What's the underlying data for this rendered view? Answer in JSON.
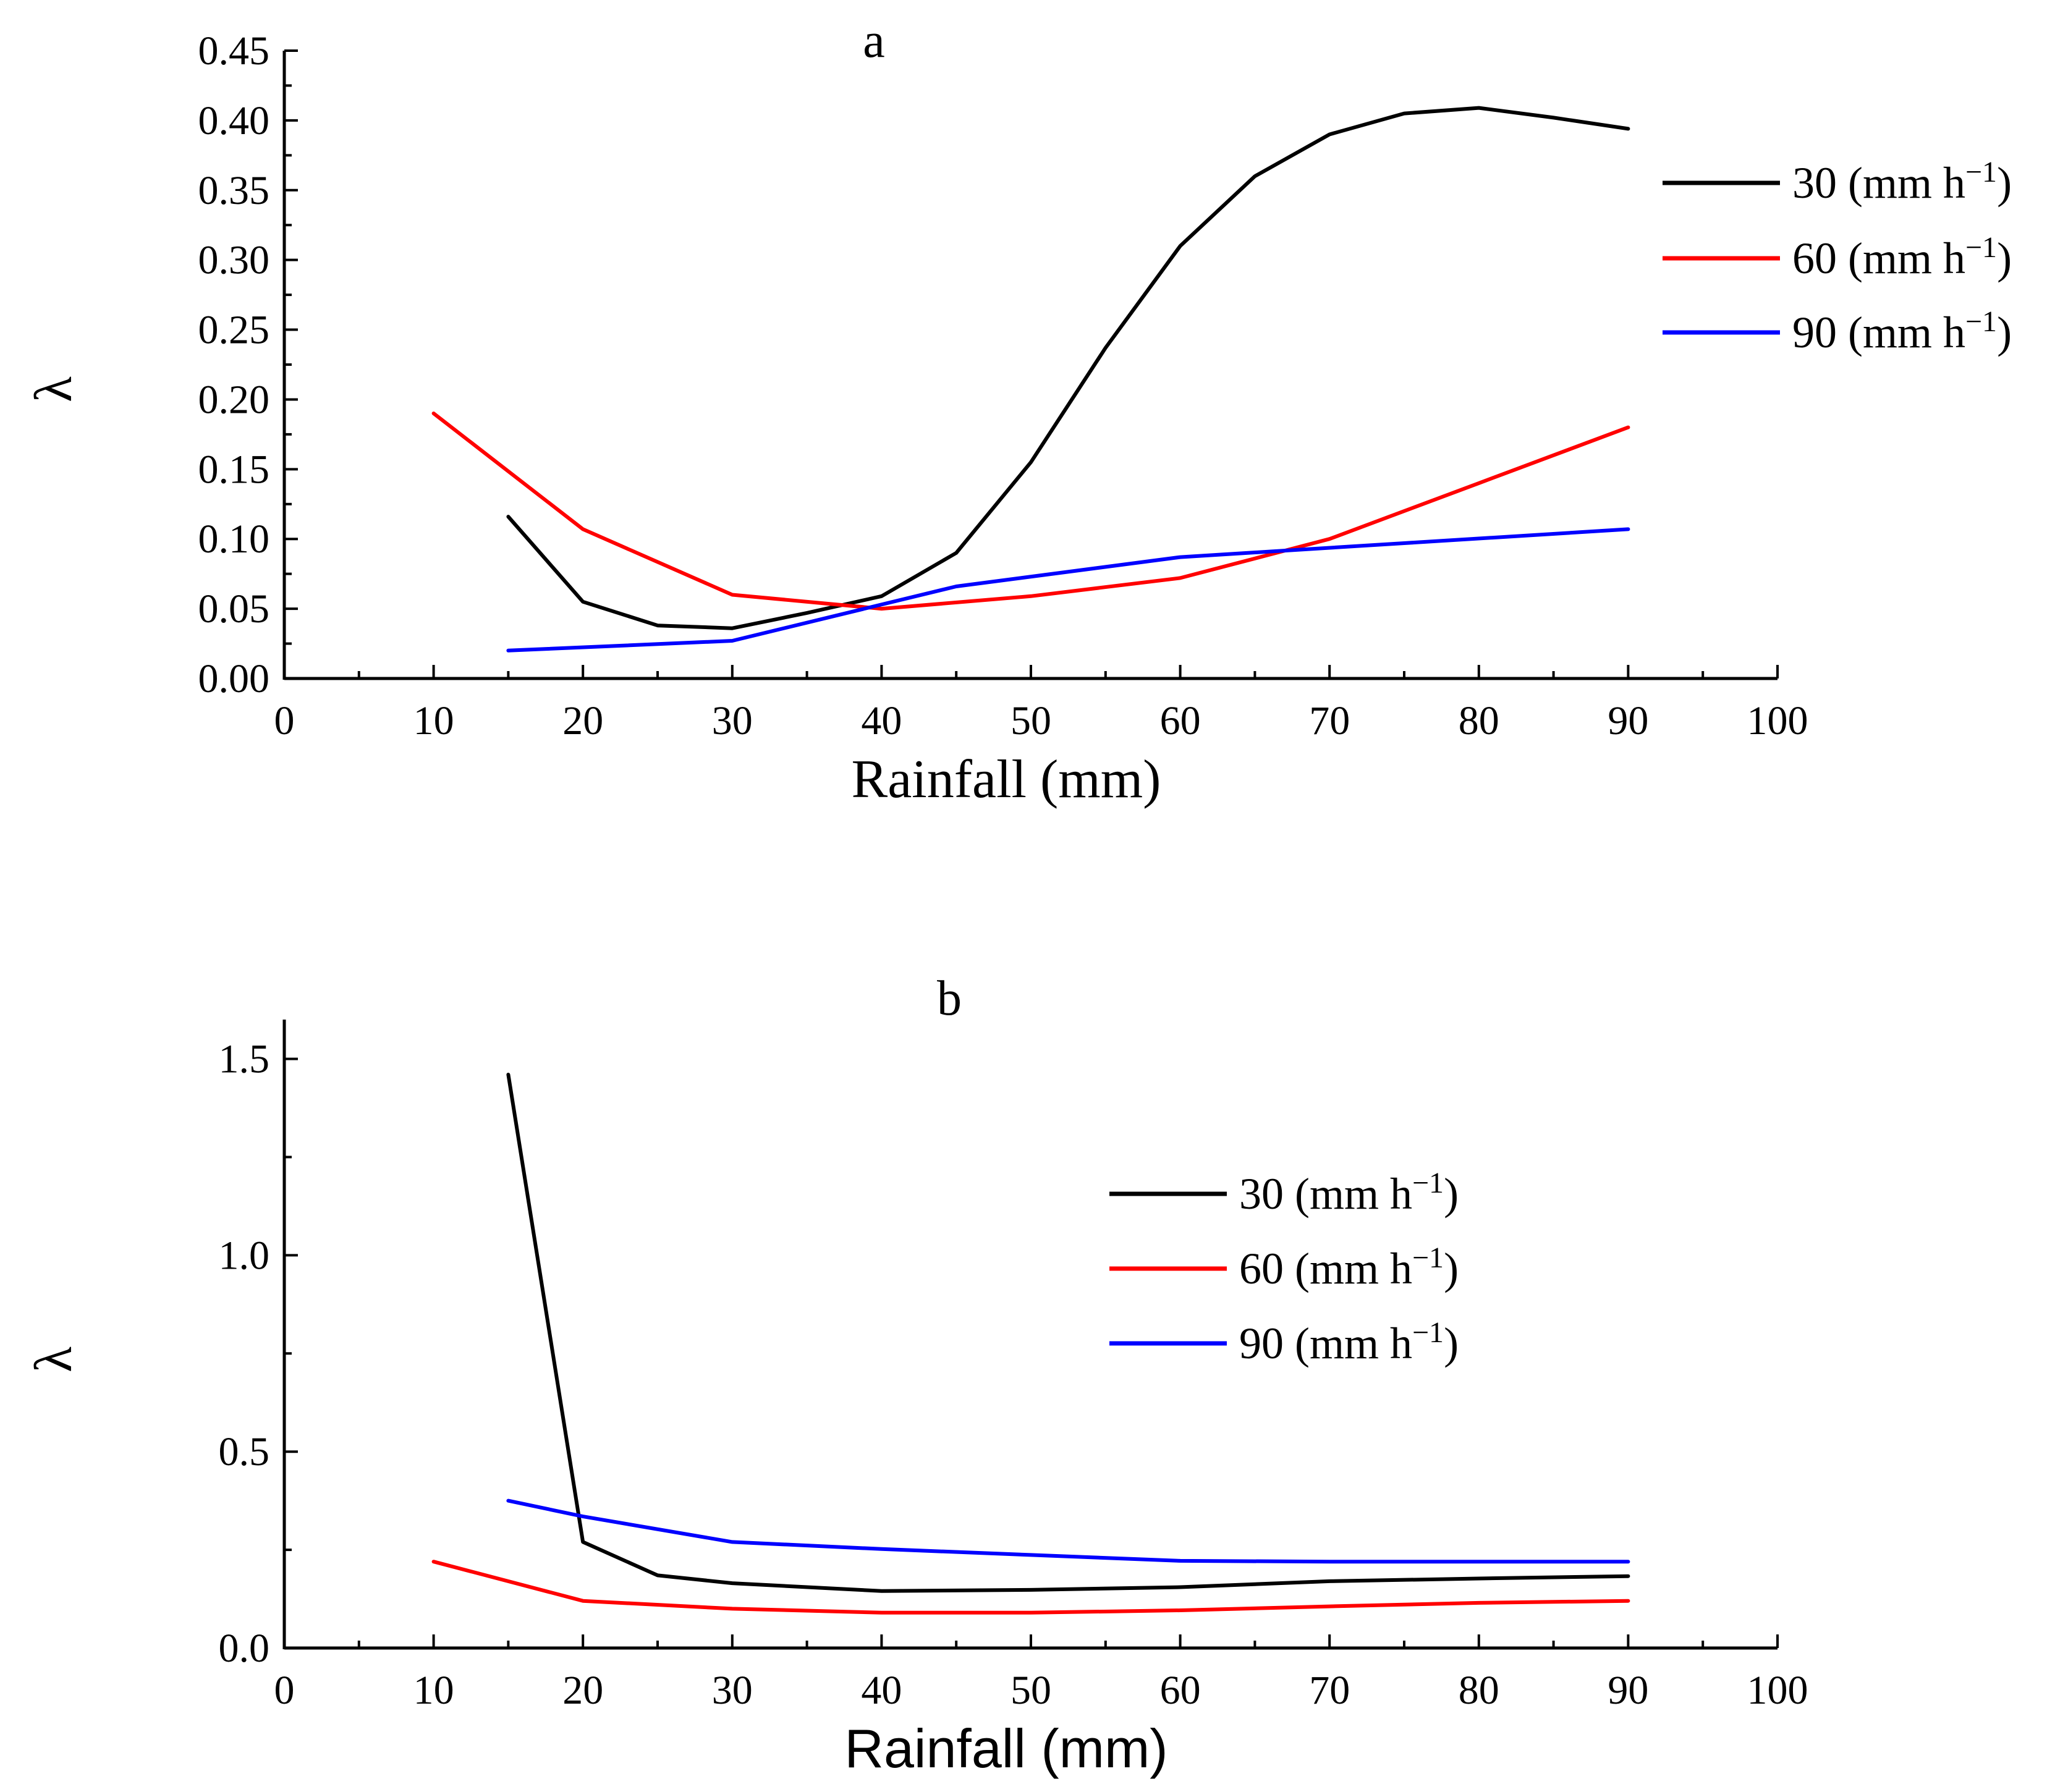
{
  "chart_data": [
    {
      "type": "line",
      "title": "a",
      "xlabel": "Rainfall (mm)",
      "ylabel": "λ",
      "xlim": [
        0,
        100
      ],
      "ylim": [
        0,
        0.45
      ],
      "x_major_ticks": [
        0,
        10,
        20,
        30,
        40,
        50,
        60,
        70,
        80,
        90,
        100
      ],
      "x_tick_labels": [
        "0",
        "10",
        "20",
        "30",
        "40",
        "50",
        "60",
        "70",
        "80",
        "90",
        "100"
      ],
      "y_major_ticks": [
        0,
        0.05,
        0.1,
        0.15,
        0.2,
        0.25,
        0.3,
        0.35,
        0.4,
        0.45
      ],
      "y_tick_labels": [
        "0.00",
        "0.05",
        "0.10",
        "0.15",
        "0.20",
        "0.25",
        "0.30",
        "0.35",
        "0.40",
        "0.45"
      ],
      "grid": false,
      "legend_position": "top-right, outside plot",
      "series": [
        {
          "name": "30",
          "unit": "(mm h",
          "exp": "−1",
          "close": ")",
          "color": "#000000",
          "x": [
            15,
            20,
            25,
            30,
            35,
            40,
            45,
            50,
            55,
            60,
            65,
            70,
            75,
            80,
            85,
            90
          ],
          "values": [
            0.116,
            0.055,
            0.038,
            0.036,
            0.047,
            0.059,
            0.09,
            0.155,
            0.237,
            0.31,
            0.36,
            0.39,
            0.405,
            0.409,
            0.402,
            0.394
          ]
        },
        {
          "name": "60",
          "unit": "(mm h",
          "exp": "−1",
          "close": ")",
          "color": "#ff0000",
          "x": [
            10,
            20,
            30,
            40,
            50,
            60,
            70,
            80,
            90
          ],
          "values": [
            0.19,
            0.107,
            0.06,
            0.05,
            0.059,
            0.072,
            0.1,
            0.14,
            0.18
          ]
        },
        {
          "name": "90",
          "unit": "(mm h",
          "exp": "−1",
          "close": ")",
          "color": "#0000ff",
          "x": [
            15,
            30,
            45,
            60,
            75,
            90
          ],
          "values": [
            0.02,
            0.027,
            0.066,
            0.087,
            0.097,
            0.107
          ]
        }
      ]
    },
    {
      "type": "line",
      "title": "b",
      "xlabel": "Rainfall (mm)",
      "ylabel": "λ",
      "xlim": [
        0,
        100
      ],
      "ylim": [
        0,
        1.6
      ],
      "x_major_ticks": [
        0,
        10,
        20,
        30,
        40,
        50,
        60,
        70,
        80,
        90,
        100
      ],
      "x_tick_labels": [
        "0",
        "10",
        "20",
        "30",
        "40",
        "50",
        "60",
        "70",
        "80",
        "90",
        "100"
      ],
      "y_major_ticks": [
        0,
        0.5,
        1.0,
        1.5
      ],
      "y_tick_labels": [
        "0.0",
        "0.5",
        "1.0",
        "1.5"
      ],
      "grid": false,
      "legend_position": "center-right, inside plot",
      "series": [
        {
          "name": "30",
          "unit": "(mm h",
          "exp": "−1",
          "close": ")",
          "color": "#000000",
          "x": [
            15,
            20,
            25,
            30,
            40,
            50,
            60,
            70,
            80,
            90
          ],
          "values": [
            1.46,
            0.27,
            0.185,
            0.165,
            0.145,
            0.148,
            0.155,
            0.17,
            0.177,
            0.183
          ]
        },
        {
          "name": "60",
          "unit": "(mm h",
          "exp": "−1",
          "close": ")",
          "color": "#ff0000",
          "x": [
            10,
            20,
            30,
            40,
            50,
            60,
            70,
            80,
            90
          ],
          "values": [
            0.22,
            0.12,
            0.1,
            0.09,
            0.09,
            0.096,
            0.106,
            0.115,
            0.12
          ]
        },
        {
          "name": "90",
          "unit": "(mm h",
          "exp": "−1",
          "close": ")",
          "color": "#0000ff",
          "x": [
            15,
            20,
            30,
            40,
            50,
            60,
            70,
            80,
            90
          ],
          "values": [
            0.375,
            0.335,
            0.27,
            0.252,
            0.237,
            0.222,
            0.22,
            0.22,
            0.22
          ]
        }
      ]
    }
  ]
}
